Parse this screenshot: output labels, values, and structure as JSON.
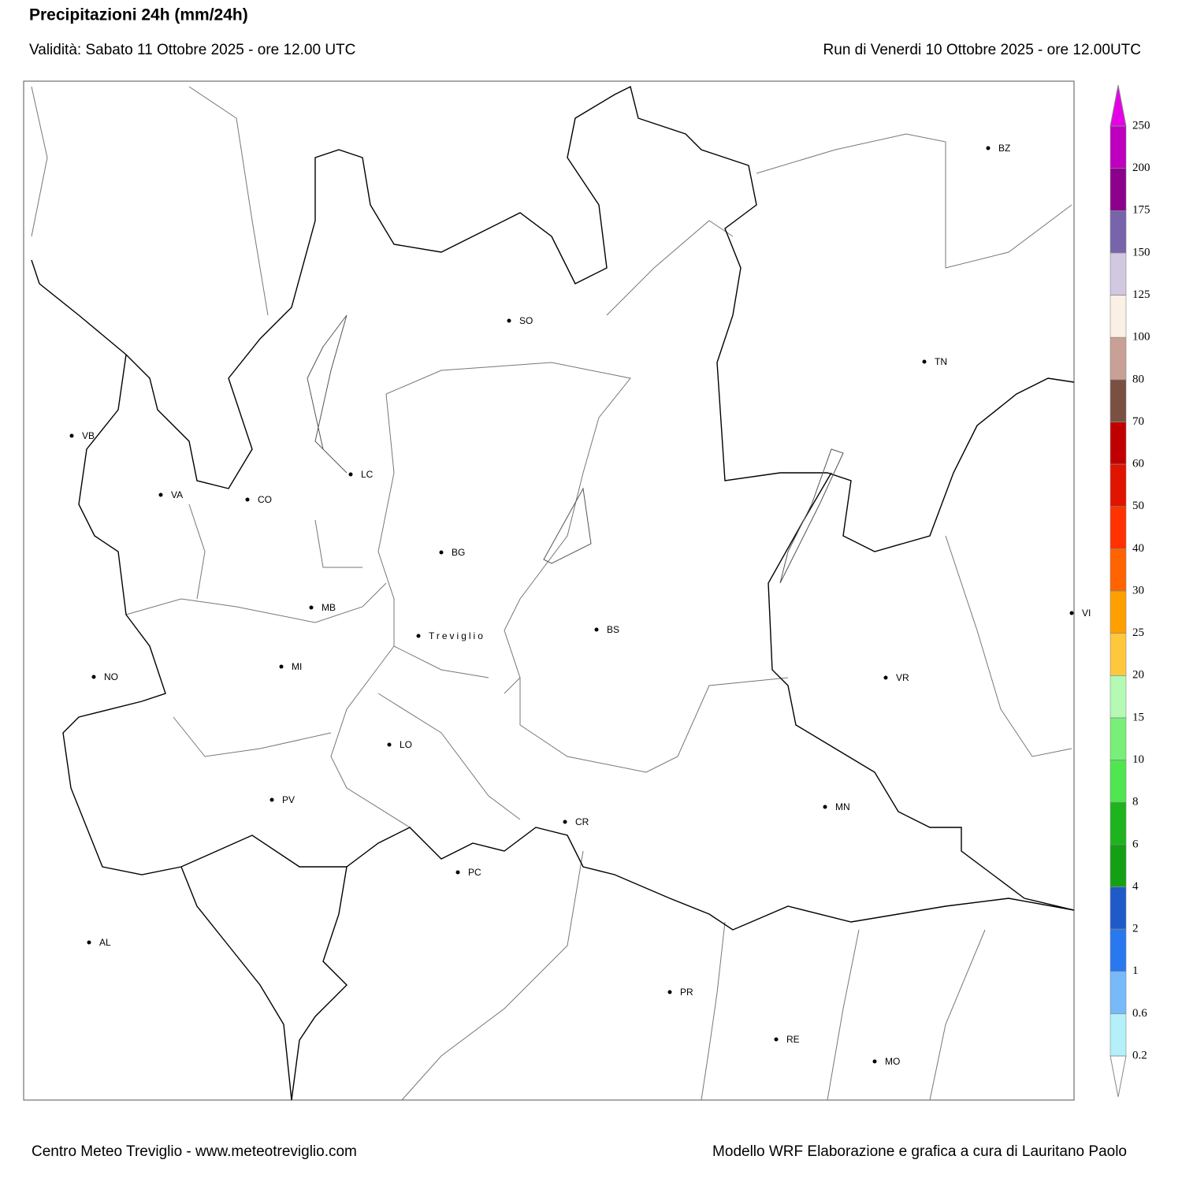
{
  "header": {
    "title": "Precipitazioni 24h (mm/24h)",
    "validity": "Validità: Sabato 11 Ottobre 2025 - ore 12.00 UTC",
    "run": "Run di Venerdi 10 Ottobre 2025 - ore 12.00UTC"
  },
  "map": {
    "cities": [
      "VB",
      "VA",
      "CO",
      "LC",
      "SO",
      "BZ",
      "TN",
      "BG",
      "MB",
      "Treviglio",
      "BS",
      "NO",
      "MI",
      "VR",
      "VI",
      "LO",
      "PV",
      "MN",
      "CR",
      "PC",
      "AL",
      "PR",
      "RE",
      "MO"
    ]
  },
  "legend": {
    "levels": [
      0.2,
      0.6,
      1,
      2,
      4,
      6,
      8,
      10,
      15,
      20,
      25,
      30,
      40,
      50,
      60,
      70,
      80,
      100,
      125,
      150,
      175,
      200,
      250
    ],
    "under_color": "#ffffff",
    "colors": [
      "#b4f0fa",
      "#78b9fa",
      "#2878f0",
      "#1e5ac8",
      "#14a014",
      "#1eb41e",
      "#50e650",
      "#78f078",
      "#b4fab4",
      "#ffc83c",
      "#ffa000",
      "#ff6400",
      "#ff3200",
      "#e11400",
      "#c00000",
      "#7a5040",
      "#c8a096",
      "#faf0e6",
      "#d2c8e1",
      "#7864aa",
      "#8c008c",
      "#be00be"
    ],
    "over_color": "#e600e6"
  },
  "footer": {
    "left": "Centro Meteo Treviglio - www.meteotreviglio.com",
    "right": "Modello WRF Elaborazione e grafica a cura di Lauritano Paolo"
  }
}
